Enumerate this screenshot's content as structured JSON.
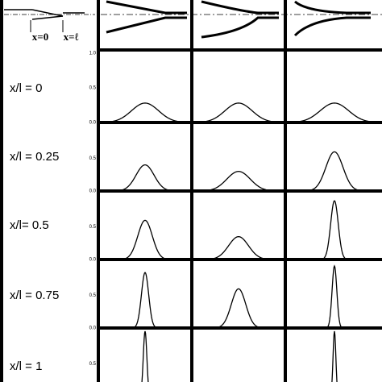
{
  "header": {
    "labels": [
      "x=0",
      "x=ℓ"
    ]
  },
  "yticks": [
    {
      "value": 0,
      "label": "0.0"
    },
    0.5,
    {
      "value": 1,
      "label": "1.0"
    }
  ],
  "rows": [
    {
      "label": "x/l = 0",
      "peaks": [
        0.28,
        0.28,
        0.28
      ],
      "widths": [
        0.15,
        0.15,
        0.15
      ]
    },
    {
      "label": "x/l = 0.25",
      "peaks": [
        0.4,
        0.3,
        0.6
      ],
      "widths": [
        0.1,
        0.13,
        0.09
      ]
    },
    {
      "label": "x/l= 0.5",
      "peaks": [
        0.6,
        0.35,
        0.9
      ],
      "widths": [
        0.08,
        0.11,
        0.04
      ]
    },
    {
      "label": "x/l = 0.75",
      "peaks": [
        0.85,
        0.6,
        0.95
      ],
      "widths": [
        0.04,
        0.08,
        0.025
      ]
    },
    {
      "label": "x/l = 1",
      "peaks": [
        1.0,
        null,
        1.0
      ],
      "widths": [
        0.02,
        null,
        0.015
      ]
    }
  ]
}
